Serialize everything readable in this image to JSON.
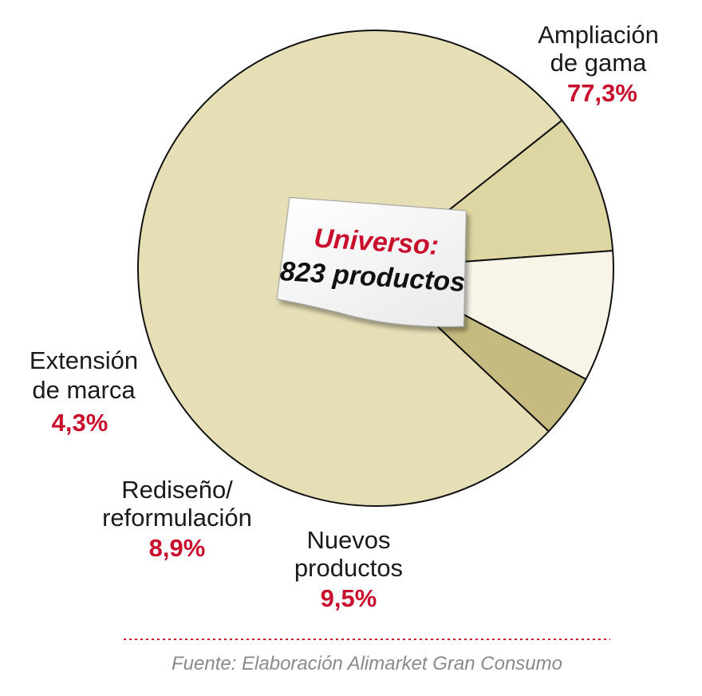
{
  "chart_data": {
    "type": "pie",
    "categories": [
      "Ampliación de gama",
      "Nuevos productos",
      "Rediseño/ reformulación",
      "Extensión de marca"
    ],
    "values": [
      77.3,
      9.5,
      8.9,
      4.3
    ],
    "value_labels": [
      "77,3%",
      "9,5%",
      "8,9%",
      "4,3%"
    ],
    "label_lines": [
      [
        "Ampliación",
        "de gama"
      ],
      [
        "Nuevos",
        "productos"
      ],
      [
        "Rediseño/",
        "reformulación"
      ],
      [
        "Extensión",
        "de marca"
      ]
    ],
    "colors": [
      "#e6dfb6",
      "#ddd5a2",
      "#f8f5e8",
      "#c5bb80"
    ],
    "center_note": {
      "line1": "Universo:",
      "line2": "823 productos"
    },
    "source": "Fuente: Elaboración Alimarket Gran Consumo"
  }
}
